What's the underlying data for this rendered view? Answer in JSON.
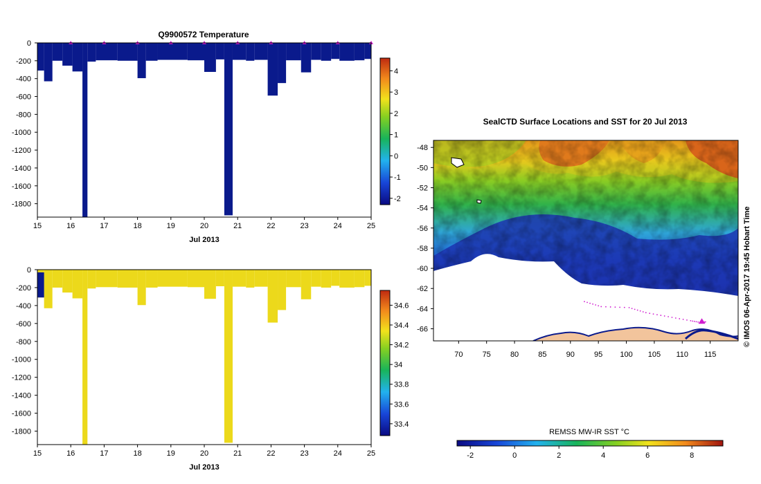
{
  "colors": {
    "deep_bar": "#0a1a8c",
    "salinity_bar": "#ecd91b",
    "salinity_low": "#0a1a8c",
    "profile_marker": "#d01dd0",
    "land": "#f2c49c",
    "coast": "#0a1a8c"
  },
  "chart_data": [
    {
      "type": "bar",
      "title": "Q9900572  Temperature",
      "xlabel": "Jul 2013",
      "ylabel": "",
      "xlim": [
        15,
        25
      ],
      "ylim": [
        -1950,
        0
      ],
      "xticks": [
        15,
        16,
        17,
        18,
        19,
        20,
        21,
        22,
        23,
        24,
        25
      ],
      "yticks": [
        0,
        -200,
        -400,
        -600,
        -800,
        -1000,
        -1200,
        -1400,
        -1600,
        -1800
      ],
      "profiles": [
        {
          "t0": 15.0,
          "t1": 15.2,
          "depth": 310
        },
        {
          "t0": 15.2,
          "t1": 15.45,
          "depth": 430
        },
        {
          "t0": 15.45,
          "t1": 15.75,
          "depth": 200
        },
        {
          "t0": 15.75,
          "t1": 16.05,
          "depth": 255
        },
        {
          "t0": 16.05,
          "t1": 16.35,
          "depth": 320
        },
        {
          "t0": 16.35,
          "t1": 16.5,
          "depth": 1950
        },
        {
          "t0": 16.5,
          "t1": 16.75,
          "depth": 210
        },
        {
          "t0": 16.75,
          "t1": 17.4,
          "depth": 195
        },
        {
          "t0": 17.4,
          "t1": 18.0,
          "depth": 200
        },
        {
          "t0": 18.0,
          "t1": 18.25,
          "depth": 395
        },
        {
          "t0": 18.25,
          "t1": 18.6,
          "depth": 200
        },
        {
          "t0": 18.6,
          "t1": 19.5,
          "depth": 190
        },
        {
          "t0": 19.5,
          "t1": 20.0,
          "depth": 195
        },
        {
          "t0": 20.0,
          "t1": 20.35,
          "depth": 325
        },
        {
          "t0": 20.35,
          "t1": 20.6,
          "depth": 185
        },
        {
          "t0": 20.6,
          "t1": 20.85,
          "depth": 1930
        },
        {
          "t0": 20.85,
          "t1": 21.25,
          "depth": 190
        },
        {
          "t0": 21.25,
          "t1": 21.5,
          "depth": 200
        },
        {
          "t0": 21.5,
          "t1": 21.9,
          "depth": 190
        },
        {
          "t0": 21.9,
          "t1": 22.2,
          "depth": 590
        },
        {
          "t0": 22.2,
          "t1": 22.45,
          "depth": 450
        },
        {
          "t0": 22.45,
          "t1": 22.9,
          "depth": 195
        },
        {
          "t0": 22.9,
          "t1": 23.2,
          "depth": 330
        },
        {
          "t0": 23.2,
          "t1": 23.5,
          "depth": 190
        },
        {
          "t0": 23.5,
          "t1": 23.8,
          "depth": 200
        },
        {
          "t0": 23.8,
          "t1": 24.05,
          "depth": 180
        },
        {
          "t0": 24.05,
          "t1": 24.5,
          "depth": 200
        },
        {
          "t0": 24.5,
          "t1": 24.8,
          "depth": 195
        },
        {
          "t0": 24.8,
          "t1": 25.0,
          "depth": 180
        }
      ],
      "surface_markers": [
        16,
        17,
        18,
        19,
        20,
        21,
        22,
        23,
        24,
        25
      ],
      "colorbar": {
        "range": [
          -2.3,
          4.6
        ],
        "ticks": [
          "-2",
          "-1",
          "0",
          "1",
          "2",
          "3",
          "4"
        ],
        "tick_values": [
          -2,
          -1,
          0,
          1,
          2,
          3,
          4
        ]
      }
    },
    {
      "type": "bar",
      "title": "Q9900572 Salinity",
      "xlabel": "Jul 2013",
      "ylabel": "",
      "xlim": [
        15,
        25
      ],
      "ylim": [
        -1950,
        0
      ],
      "xticks": [
        15,
        16,
        17,
        18,
        19,
        20,
        21,
        22,
        23,
        24,
        25
      ],
      "yticks": [
        0,
        -200,
        -400,
        -600,
        -800,
        -1000,
        -1200,
        -1400,
        -1600,
        -1800
      ],
      "low_salinity_patch": {
        "t0": 15.0,
        "t1": 15.2,
        "depth_top": 30,
        "depth_bottom": 310
      },
      "colorbar": {
        "range": [
          33.28,
          34.75
        ],
        "ticks": [
          "33.4",
          "33.6",
          "33.8",
          "34",
          "34.2",
          "34.4",
          "34.6"
        ],
        "tick_values": [
          33.4,
          33.6,
          33.8,
          34.0,
          34.2,
          34.4,
          34.6
        ]
      }
    },
    {
      "type": "heatmap",
      "title": "SealCTD Surface Locations and SST for 20 Jul 2013",
      "xlim": [
        65.5,
        120
      ],
      "ylim": [
        -67.2,
        -47.3
      ],
      "xticks": [
        70,
        75,
        80,
        85,
        90,
        95,
        100,
        105,
        110,
        115
      ],
      "yticks": [
        -48,
        -50,
        -52,
        -54,
        -56,
        -58,
        -60,
        -62,
        -64,
        -66
      ],
      "track_points": [
        [
          92.5,
          -63.3
        ],
        [
          95.5,
          -63.8
        ],
        [
          100.5,
          -63.9
        ],
        [
          103.5,
          -64.4
        ],
        [
          107.5,
          -64.8
        ],
        [
          111.5,
          -65.2
        ],
        [
          113.5,
          -65.4
        ],
        [
          114.3,
          -65.3
        ]
      ],
      "current_location": [
        113.5,
        -65.3
      ],
      "credit": "© IMOS 06-Apr-2017 19:45 Hobart Time",
      "colorbar": {
        "label": "REMSS MW-IR SST °C",
        "range": [
          -2.6,
          9.4
        ],
        "ticks": [
          "-2",
          "0",
          "2",
          "4",
          "6",
          "8"
        ],
        "tick_values": [
          -2,
          0,
          2,
          4,
          6,
          8
        ]
      }
    }
  ]
}
